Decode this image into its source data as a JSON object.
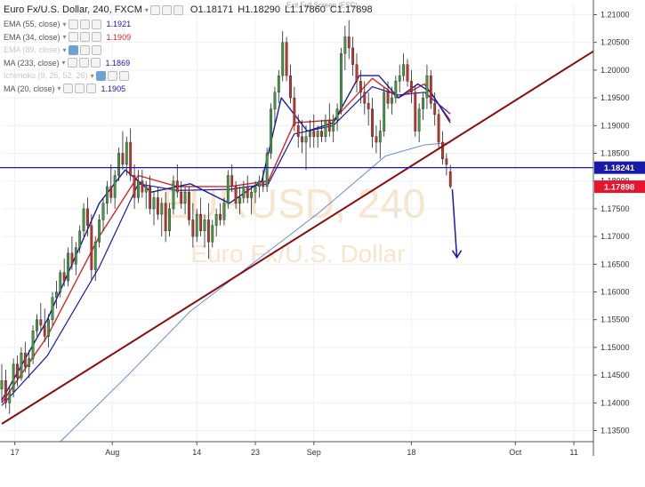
{
  "header": {
    "symbol": "Euro Fx/U.S. Dollar, 240, FXCM",
    "open_label": "O",
    "open": "1.18171",
    "high_label": "H",
    "high": "1.18290",
    "low_label": "L",
    "low": "1.17860",
    "close_label": "C",
    "close": "1.17898",
    "exit_fullscreen": "Exit Full Screen (ESC)"
  },
  "indicators": [
    {
      "label": "EMA (55, close)",
      "value": "1.1921",
      "color": "#1a1aa8",
      "faded": false
    },
    {
      "label": "EMA (34, close)",
      "value": "1.1909",
      "color": "#d62728",
      "faded": false
    },
    {
      "label": "EMA (89, close)",
      "value": "",
      "color": "#bbbbbb",
      "faded": true
    },
    {
      "label": "MA (233, close)",
      "value": "1.1869",
      "color": "#1a1aa8",
      "faded": false
    },
    {
      "label": "Ichimoku (9, 26, 52, 26)",
      "value": "",
      "color": "#bbbbbb",
      "faded": true
    },
    {
      "label": "MA (20, close)",
      "value": "1.1905",
      "color": "#1a1aa8",
      "faded": false
    }
  ],
  "watermark": {
    "line1": "EURUSD, 240",
    "line2": "Euro Fx/U.S. Dollar"
  },
  "chart_data": {
    "type": "candlestick",
    "symbol": "EURUSD",
    "timeframe": "240",
    "y_ticks": [
      1.135,
      1.14,
      1.145,
      1.15,
      1.155,
      1.16,
      1.165,
      1.17,
      1.175,
      1.18,
      1.185,
      1.19,
      1.195,
      1.2,
      1.205,
      1.21
    ],
    "y_tick_labels": [
      "1.13500",
      "1.14000",
      "1.14500",
      "1.15000",
      "1.15500",
      "1.16000",
      "1.16500",
      "1.17000",
      "1.17500",
      "1.18000",
      "1.18500",
      "1.19000",
      "1.19500",
      "1.20000",
      "1.20500",
      "1.21000"
    ],
    "ylim": [
      1.133,
      1.212
    ],
    "x_tick_labels": [
      "17",
      "Aug",
      "14",
      "23",
      "Sep",
      "18",
      "Oct",
      "11"
    ],
    "x_tick_days": [
      17,
      32,
      45,
      54,
      63,
      78,
      94,
      103
    ],
    "xlim": [
      15,
      106
    ],
    "horizontal_line": {
      "value": 1.18241,
      "label": "1.18241",
      "color": "#1a1aa8"
    },
    "last_price": {
      "value": 1.17898,
      "label": "1.17898",
      "color": "#e8132c"
    },
    "trendline": {
      "from": [
        15,
        1.1362
      ],
      "to": [
        106,
        1.2034
      ],
      "color": "#8b0d0d"
    },
    "arrow": {
      "from": [
        84.3,
        1.1785
      ],
      "to": [
        85.0,
        1.1662
      ],
      "color": "#1a1aa8"
    },
    "ma233_line": [
      [
        24,
        1.133
      ],
      [
        34,
        1.1445
      ],
      [
        44,
        1.1565
      ],
      [
        54,
        1.1655
      ],
      [
        64,
        1.1745
      ],
      [
        74,
        1.1845
      ],
      [
        80,
        1.1865
      ],
      [
        84,
        1.1869
      ]
    ],
    "ema55_line": [
      [
        15,
        1.1395
      ],
      [
        22,
        1.1485
      ],
      [
        30,
        1.1645
      ],
      [
        36,
        1.1795
      ],
      [
        42,
        1.1783
      ],
      [
        50,
        1.1785
      ],
      [
        56,
        1.1795
      ],
      [
        60,
        1.1885
      ],
      [
        66,
        1.19
      ],
      [
        72,
        1.197
      ],
      [
        76,
        1.1955
      ],
      [
        80,
        1.196
      ],
      [
        84,
        1.1921
      ]
    ],
    "ema34_line": [
      [
        15,
        1.14
      ],
      [
        22,
        1.152
      ],
      [
        30,
        1.17
      ],
      [
        36,
        1.181
      ],
      [
        42,
        1.179
      ],
      [
        50,
        1.179
      ],
      [
        56,
        1.18
      ],
      [
        60,
        1.1905
      ],
      [
        66,
        1.191
      ],
      [
        72,
        1.1985
      ],
      [
        76,
        1.195
      ],
      [
        80,
        1.1975
      ],
      [
        84,
        1.1909
      ]
    ],
    "ma20_line": [
      [
        15,
        1.1405
      ],
      [
        22,
        1.155
      ],
      [
        30,
        1.176
      ],
      [
        34,
        1.182
      ],
      [
        38,
        1.178
      ],
      [
        44,
        1.1795
      ],
      [
        50,
        1.176
      ],
      [
        55,
        1.18
      ],
      [
        58,
        1.195
      ],
      [
        62,
        1.189
      ],
      [
        66,
        1.1905
      ],
      [
        70,
        1.199
      ],
      [
        73,
        1.199
      ],
      [
        76,
        1.195
      ],
      [
        79,
        1.1975
      ],
      [
        81,
        1.196
      ],
      [
        84,
        1.1905
      ]
    ],
    "candles": [
      {
        "t": 15.0,
        "o": 1.1425,
        "h": 1.147,
        "l": 1.14,
        "c": 1.144
      },
      {
        "t": 15.6,
        "o": 1.144,
        "h": 1.146,
        "l": 1.139,
        "c": 1.14
      },
      {
        "t": 16.2,
        "o": 1.14,
        "h": 1.143,
        "l": 1.138,
        "c": 1.142
      },
      {
        "t": 16.8,
        "o": 1.142,
        "h": 1.148,
        "l": 1.141,
        "c": 1.147
      },
      {
        "t": 17.4,
        "o": 1.147,
        "h": 1.1485,
        "l": 1.143,
        "c": 1.1445
      },
      {
        "t": 18.0,
        "o": 1.1445,
        "h": 1.15,
        "l": 1.144,
        "c": 1.149
      },
      {
        "t": 18.6,
        "o": 1.149,
        "h": 1.151,
        "l": 1.1455,
        "c": 1.1465
      },
      {
        "t": 19.2,
        "o": 1.1465,
        "h": 1.1495,
        "l": 1.1445,
        "c": 1.148
      },
      {
        "t": 19.8,
        "o": 1.148,
        "h": 1.154,
        "l": 1.147,
        "c": 1.153
      },
      {
        "t": 20.4,
        "o": 1.153,
        "h": 1.156,
        "l": 1.152,
        "c": 1.155
      },
      {
        "t": 21.0,
        "o": 1.155,
        "h": 1.158,
        "l": 1.153,
        "c": 1.154
      },
      {
        "t": 21.6,
        "o": 1.154,
        "h": 1.157,
        "l": 1.151,
        "c": 1.152
      },
      {
        "t": 22.2,
        "o": 1.152,
        "h": 1.156,
        "l": 1.15,
        "c": 1.155
      },
      {
        "t": 22.8,
        "o": 1.155,
        "h": 1.16,
        "l": 1.154,
        "c": 1.159
      },
      {
        "t": 23.4,
        "o": 1.159,
        "h": 1.162,
        "l": 1.157,
        "c": 1.16
      },
      {
        "t": 24.0,
        "o": 1.16,
        "h": 1.164,
        "l": 1.159,
        "c": 1.1635
      },
      {
        "t": 24.6,
        "o": 1.1635,
        "h": 1.166,
        "l": 1.161,
        "c": 1.162
      },
      {
        "t": 25.2,
        "o": 1.162,
        "h": 1.168,
        "l": 1.161,
        "c": 1.167
      },
      {
        "t": 25.8,
        "o": 1.167,
        "h": 1.17,
        "l": 1.164,
        "c": 1.165
      },
      {
        "t": 26.4,
        "o": 1.165,
        "h": 1.169,
        "l": 1.163,
        "c": 1.168
      },
      {
        "t": 27.0,
        "o": 1.168,
        "h": 1.172,
        "l": 1.167,
        "c": 1.171
      },
      {
        "t": 27.6,
        "o": 1.171,
        "h": 1.176,
        "l": 1.17,
        "c": 1.175
      },
      {
        "t": 28.2,
        "o": 1.175,
        "h": 1.177,
        "l": 1.17,
        "c": 1.172
      },
      {
        "t": 28.8,
        "o": 1.172,
        "h": 1.174,
        "l": 1.162,
        "c": 1.164
      },
      {
        "t": 29.4,
        "o": 1.164,
        "h": 1.17,
        "l": 1.162,
        "c": 1.169
      },
      {
        "t": 30.0,
        "o": 1.169,
        "h": 1.174,
        "l": 1.168,
        "c": 1.173
      },
      {
        "t": 30.6,
        "o": 1.173,
        "h": 1.177,
        "l": 1.171,
        "c": 1.176
      },
      {
        "t": 31.2,
        "o": 1.176,
        "h": 1.18,
        "l": 1.174,
        "c": 1.179
      },
      {
        "t": 31.8,
        "o": 1.179,
        "h": 1.183,
        "l": 1.176,
        "c": 1.177
      },
      {
        "t": 32.4,
        "o": 1.177,
        "h": 1.182,
        "l": 1.175,
        "c": 1.181
      },
      {
        "t": 33.0,
        "o": 1.181,
        "h": 1.186,
        "l": 1.18,
        "c": 1.185
      },
      {
        "t": 33.6,
        "o": 1.185,
        "h": 1.189,
        "l": 1.182,
        "c": 1.183
      },
      {
        "t": 34.2,
        "o": 1.183,
        "h": 1.188,
        "l": 1.181,
        "c": 1.187
      },
      {
        "t": 34.8,
        "o": 1.187,
        "h": 1.1895,
        "l": 1.18,
        "c": 1.181
      },
      {
        "t": 35.4,
        "o": 1.181,
        "h": 1.183,
        "l": 1.175,
        "c": 1.177
      },
      {
        "t": 36.0,
        "o": 1.177,
        "h": 1.182,
        "l": 1.176,
        "c": 1.18
      },
      {
        "t": 36.6,
        "o": 1.18,
        "h": 1.182,
        "l": 1.177,
        "c": 1.178
      },
      {
        "t": 37.2,
        "o": 1.178,
        "h": 1.18,
        "l": 1.175,
        "c": 1.179
      },
      {
        "t": 37.8,
        "o": 1.179,
        "h": 1.181,
        "l": 1.174,
        "c": 1.175
      },
      {
        "t": 38.4,
        "o": 1.175,
        "h": 1.178,
        "l": 1.172,
        "c": 1.177
      },
      {
        "t": 39.0,
        "o": 1.177,
        "h": 1.179,
        "l": 1.173,
        "c": 1.174
      },
      {
        "t": 39.6,
        "o": 1.174,
        "h": 1.177,
        "l": 1.17,
        "c": 1.176
      },
      {
        "t": 40.2,
        "o": 1.176,
        "h": 1.178,
        "l": 1.169,
        "c": 1.171
      },
      {
        "t": 40.8,
        "o": 1.171,
        "h": 1.176,
        "l": 1.17,
        "c": 1.175
      },
      {
        "t": 41.4,
        "o": 1.175,
        "h": 1.181,
        "l": 1.174,
        "c": 1.18
      },
      {
        "t": 42.0,
        "o": 1.18,
        "h": 1.183,
        "l": 1.177,
        "c": 1.178
      },
      {
        "t": 42.6,
        "o": 1.178,
        "h": 1.18,
        "l": 1.175,
        "c": 1.176
      },
      {
        "t": 43.2,
        "o": 1.176,
        "h": 1.179,
        "l": 1.174,
        "c": 1.178
      },
      {
        "t": 43.8,
        "o": 1.178,
        "h": 1.179,
        "l": 1.172,
        "c": 1.173
      },
      {
        "t": 44.4,
        "o": 1.173,
        "h": 1.176,
        "l": 1.168,
        "c": 1.17
      },
      {
        "t": 45.0,
        "o": 1.17,
        "h": 1.175,
        "l": 1.169,
        "c": 1.174
      },
      {
        "t": 45.6,
        "o": 1.174,
        "h": 1.177,
        "l": 1.17,
        "c": 1.171
      },
      {
        "t": 46.2,
        "o": 1.171,
        "h": 1.174,
        "l": 1.168,
        "c": 1.173
      },
      {
        "t": 46.8,
        "o": 1.173,
        "h": 1.176,
        "l": 1.166,
        "c": 1.169
      },
      {
        "t": 47.4,
        "o": 1.169,
        "h": 1.173,
        "l": 1.168,
        "c": 1.172
      },
      {
        "t": 48.0,
        "o": 1.172,
        "h": 1.175,
        "l": 1.17,
        "c": 1.174
      },
      {
        "t": 48.6,
        "o": 1.174,
        "h": 1.176,
        "l": 1.172,
        "c": 1.173
      },
      {
        "t": 49.2,
        "o": 1.173,
        "h": 1.177,
        "l": 1.172,
        "c": 1.176
      },
      {
        "t": 49.8,
        "o": 1.176,
        "h": 1.182,
        "l": 1.175,
        "c": 1.181
      },
      {
        "t": 50.4,
        "o": 1.181,
        "h": 1.183,
        "l": 1.178,
        "c": 1.179
      },
      {
        "t": 51.0,
        "o": 1.179,
        "h": 1.18,
        "l": 1.175,
        "c": 1.176
      },
      {
        "t": 51.6,
        "o": 1.176,
        "h": 1.179,
        "l": 1.174,
        "c": 1.177
      },
      {
        "t": 52.2,
        "o": 1.177,
        "h": 1.18,
        "l": 1.176,
        "c": 1.179
      },
      {
        "t": 52.8,
        "o": 1.179,
        "h": 1.181,
        "l": 1.176,
        "c": 1.177
      },
      {
        "t": 53.4,
        "o": 1.177,
        "h": 1.179,
        "l": 1.174,
        "c": 1.178
      },
      {
        "t": 54.0,
        "o": 1.178,
        "h": 1.18,
        "l": 1.176,
        "c": 1.179
      },
      {
        "t": 54.6,
        "o": 1.179,
        "h": 1.181,
        "l": 1.177,
        "c": 1.18
      },
      {
        "t": 55.2,
        "o": 1.18,
        "h": 1.182,
        "l": 1.178,
        "c": 1.179
      },
      {
        "t": 55.8,
        "o": 1.179,
        "h": 1.186,
        "l": 1.178,
        "c": 1.185
      },
      {
        "t": 56.4,
        "o": 1.185,
        "h": 1.194,
        "l": 1.184,
        "c": 1.193
      },
      {
        "t": 57.0,
        "o": 1.193,
        "h": 1.197,
        "l": 1.19,
        "c": 1.196
      },
      {
        "t": 57.6,
        "o": 1.196,
        "h": 1.2,
        "l": 1.194,
        "c": 1.199
      },
      {
        "t": 58.2,
        "o": 1.199,
        "h": 1.207,
        "l": 1.198,
        "c": 1.205
      },
      {
        "t": 58.8,
        "o": 1.205,
        "h": 1.206,
        "l": 1.198,
        "c": 1.199
      },
      {
        "t": 59.4,
        "o": 1.199,
        "h": 1.201,
        "l": 1.194,
        "c": 1.195
      },
      {
        "t": 60.0,
        "o": 1.195,
        "h": 1.197,
        "l": 1.189,
        "c": 1.19
      },
      {
        "t": 60.6,
        "o": 1.19,
        "h": 1.192,
        "l": 1.186,
        "c": 1.188
      },
      {
        "t": 61.2,
        "o": 1.188,
        "h": 1.191,
        "l": 1.185,
        "c": 1.187
      },
      {
        "t": 61.8,
        "o": 1.187,
        "h": 1.19,
        "l": 1.182,
        "c": 1.188
      },
      {
        "t": 62.4,
        "o": 1.188,
        "h": 1.191,
        "l": 1.186,
        "c": 1.189
      },
      {
        "t": 63.0,
        "o": 1.189,
        "h": 1.192,
        "l": 1.186,
        "c": 1.188
      },
      {
        "t": 63.6,
        "o": 1.188,
        "h": 1.19,
        "l": 1.186,
        "c": 1.189
      },
      {
        "t": 64.2,
        "o": 1.189,
        "h": 1.191,
        "l": 1.187,
        "c": 1.188
      },
      {
        "t": 64.8,
        "o": 1.188,
        "h": 1.192,
        "l": 1.187,
        "c": 1.191
      },
      {
        "t": 65.4,
        "o": 1.191,
        "h": 1.194,
        "l": 1.188,
        "c": 1.189
      },
      {
        "t": 66.0,
        "o": 1.189,
        "h": 1.192,
        "l": 1.187,
        "c": 1.191
      },
      {
        "t": 66.6,
        "o": 1.191,
        "h": 1.194,
        "l": 1.189,
        "c": 1.193
      },
      {
        "t": 67.2,
        "o": 1.193,
        "h": 1.204,
        "l": 1.192,
        "c": 1.203
      },
      {
        "t": 67.8,
        "o": 1.203,
        "h": 1.208,
        "l": 1.2,
        "c": 1.206
      },
      {
        "t": 68.4,
        "o": 1.206,
        "h": 1.209,
        "l": 1.202,
        "c": 1.204
      },
      {
        "t": 69.0,
        "o": 1.204,
        "h": 1.206,
        "l": 1.199,
        "c": 1.201
      },
      {
        "t": 69.6,
        "o": 1.201,
        "h": 1.203,
        "l": 1.196,
        "c": 1.198
      },
      {
        "t": 70.2,
        "o": 1.198,
        "h": 1.2,
        "l": 1.194,
        "c": 1.196
      },
      {
        "t": 70.8,
        "o": 1.196,
        "h": 1.198,
        "l": 1.192,
        "c": 1.194
      },
      {
        "t": 71.4,
        "o": 1.194,
        "h": 1.196,
        "l": 1.19,
        "c": 1.193
      },
      {
        "t": 72.0,
        "o": 1.193,
        "h": 1.195,
        "l": 1.186,
        "c": 1.188
      },
      {
        "t": 72.6,
        "o": 1.188,
        "h": 1.19,
        "l": 1.185,
        "c": 1.187
      },
      {
        "t": 73.2,
        "o": 1.187,
        "h": 1.191,
        "l": 1.184,
        "c": 1.189
      },
      {
        "t": 73.8,
        "o": 1.189,
        "h": 1.197,
        "l": 1.188,
        "c": 1.196
      },
      {
        "t": 74.4,
        "o": 1.196,
        "h": 1.198,
        "l": 1.193,
        "c": 1.194
      },
      {
        "t": 75.0,
        "o": 1.194,
        "h": 1.197,
        "l": 1.192,
        "c": 1.195
      },
      {
        "t": 75.6,
        "o": 1.195,
        "h": 1.199,
        "l": 1.194,
        "c": 1.198
      },
      {
        "t": 76.2,
        "o": 1.198,
        "h": 1.201,
        "l": 1.196,
        "c": 1.199
      },
      {
        "t": 76.8,
        "o": 1.199,
        "h": 1.203,
        "l": 1.198,
        "c": 1.201
      },
      {
        "t": 77.4,
        "o": 1.201,
        "h": 1.202,
        "l": 1.197,
        "c": 1.198
      },
      {
        "t": 78.0,
        "o": 1.198,
        "h": 1.2,
        "l": 1.194,
        "c": 1.196
      },
      {
        "t": 78.6,
        "o": 1.196,
        "h": 1.197,
        "l": 1.188,
        "c": 1.189
      },
      {
        "t": 79.2,
        "o": 1.189,
        "h": 1.194,
        "l": 1.187,
        "c": 1.193
      },
      {
        "t": 79.8,
        "o": 1.193,
        "h": 1.196,
        "l": 1.191,
        "c": 1.195
      },
      {
        "t": 80.4,
        "o": 1.195,
        "h": 1.201,
        "l": 1.193,
        "c": 1.199
      },
      {
        "t": 81.0,
        "o": 1.199,
        "h": 1.2,
        "l": 1.193,
        "c": 1.194
      },
      {
        "t": 81.6,
        "o": 1.194,
        "h": 1.196,
        "l": 1.19,
        "c": 1.192
      },
      {
        "t": 82.2,
        "o": 1.192,
        "h": 1.193,
        "l": 1.186,
        "c": 1.187
      },
      {
        "t": 82.8,
        "o": 1.187,
        "h": 1.189,
        "l": 1.183,
        "c": 1.184
      },
      {
        "t": 83.4,
        "o": 1.184,
        "h": 1.185,
        "l": 1.181,
        "c": 1.183
      },
      {
        "t": 84.0,
        "o": 1.1817,
        "h": 1.1829,
        "l": 1.1786,
        "c": 1.179
      }
    ]
  }
}
